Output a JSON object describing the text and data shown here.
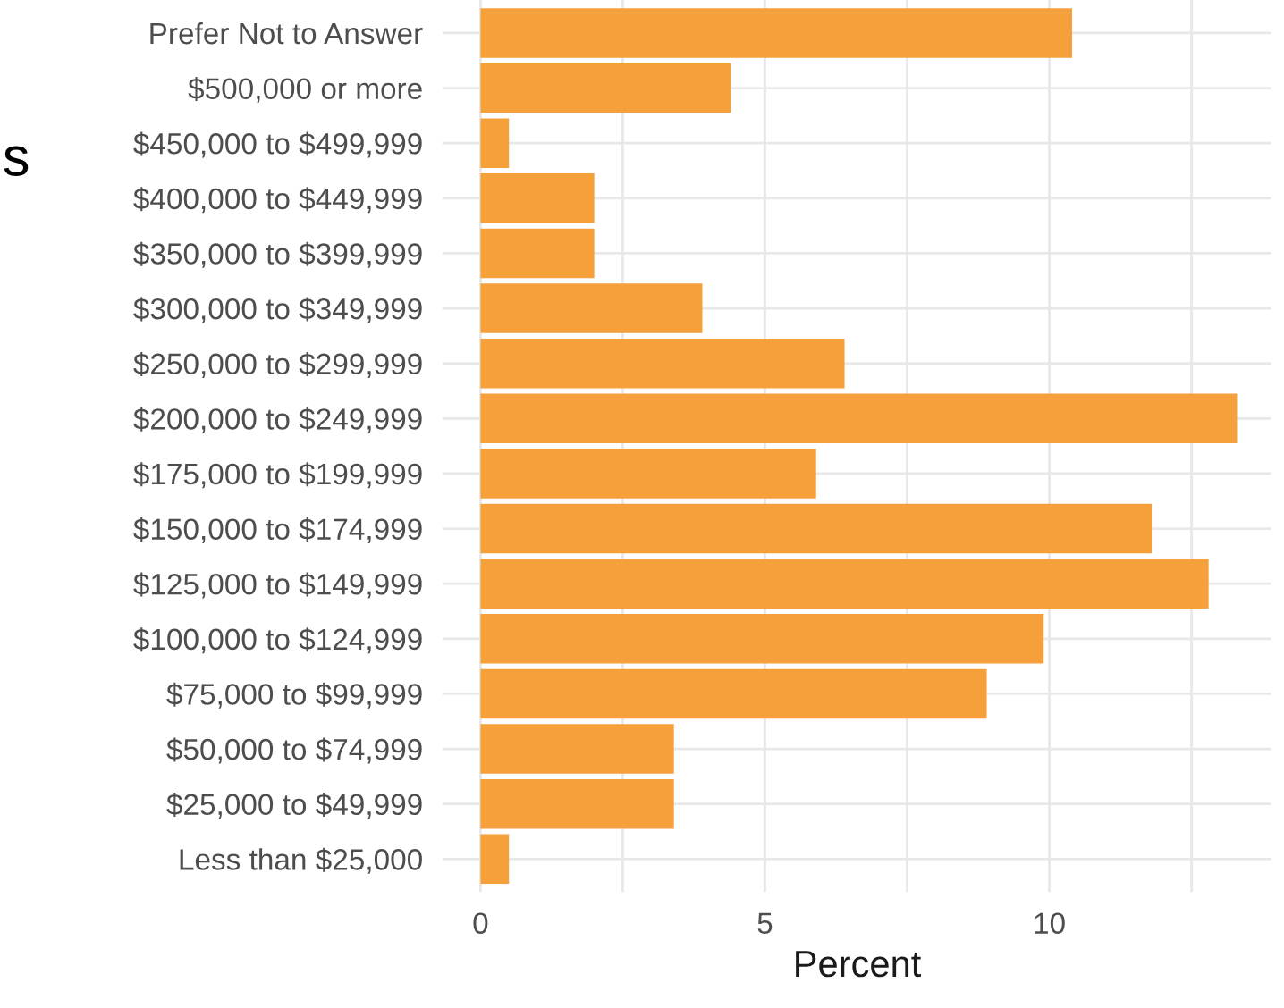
{
  "chart_data": {
    "type": "bar",
    "orientation": "horizontal",
    "xlabel": "Percent",
    "annotations": [
      "s"
    ],
    "categories": [
      "Prefer Not to Answer",
      "$500,000 or more",
      "$450,000 to $499,999",
      "$400,000 to $449,999",
      "$350,000 to $399,999",
      "$300,000 to $349,999",
      "$250,000 to $299,999",
      "$200,000 to $249,999",
      "$175,000 to $199,999",
      "$150,000 to $174,999",
      "$125,000 to $149,999",
      "$100,000 to $124,999",
      "$75,000 to $99,999",
      "$50,000 to $74,999",
      "$25,000 to $49,999",
      "Less than $25,000"
    ],
    "values": [
      10.4,
      4.4,
      0.5,
      2.0,
      2.0,
      3.9,
      6.4,
      13.3,
      5.9,
      11.8,
      12.8,
      9.9,
      8.9,
      3.4,
      3.4,
      0.5
    ],
    "color": "#f5a03a",
    "xlim": [
      -0.66,
      13.9
    ],
    "xticks": [
      0,
      {
        "value": 2.5,
        "label": null
      },
      5,
      {
        "value": 7.5,
        "label": null
      },
      10,
      {
        "value": 12.5,
        "label": null
      }
    ],
    "grid": true
  }
}
